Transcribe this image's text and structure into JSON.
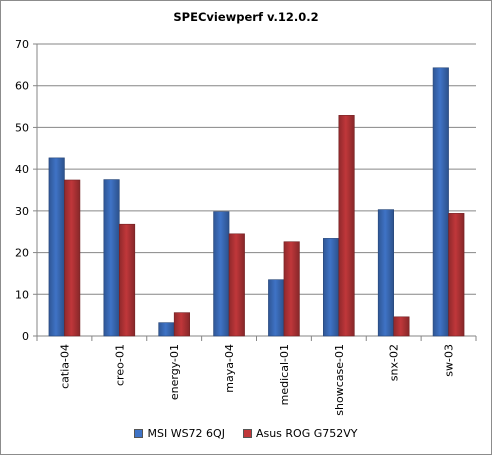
{
  "chart_data": {
    "type": "bar",
    "title": "SPECviewperf v.12.0.2",
    "categories": [
      "catia-04",
      "creo-01",
      "energy-01",
      "maya-04",
      "medical-01",
      "showcase-01",
      "snx-02",
      "sw-03"
    ],
    "series": [
      {
        "name": "MSI WS72 6QJ",
        "color": "#3f73c6",
        "values": [
          42.7,
          37.5,
          3.2,
          29.8,
          13.5,
          23.4,
          30.3,
          64.3
        ]
      },
      {
        "name": "Asus ROG G752VY",
        "color": "#c0373a",
        "values": [
          37.4,
          26.8,
          5.6,
          24.5,
          22.6,
          52.9,
          4.6,
          29.4
        ]
      }
    ],
    "ylim": [
      0,
      70
    ],
    "yticks": [
      "0",
      "10",
      "20",
      "30",
      "40",
      "50",
      "60",
      "70"
    ],
    "grid": true,
    "legend_position": "bottom"
  }
}
